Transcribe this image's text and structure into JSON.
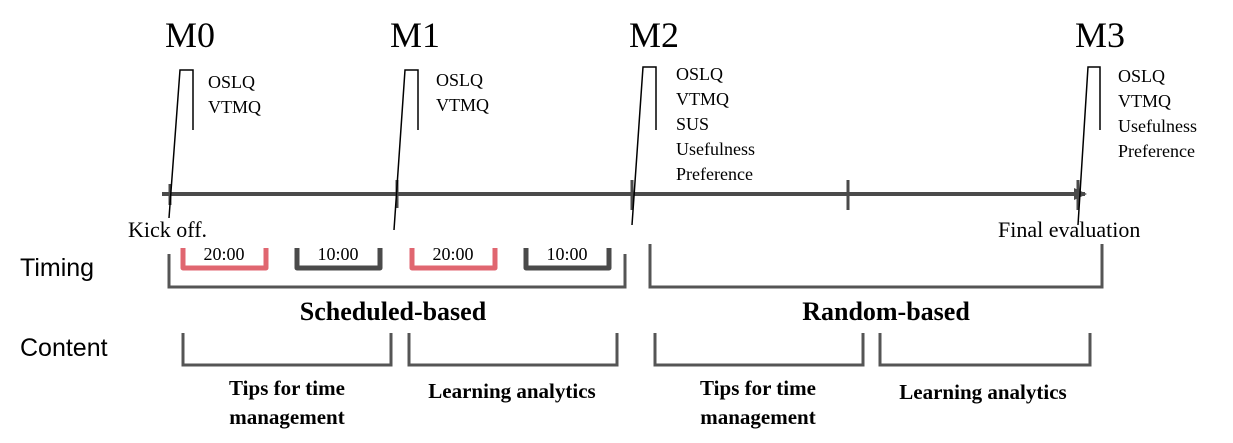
{
  "milestones": [
    {
      "label": "M0",
      "instruments": [
        "OSLQ",
        "VTMQ"
      ]
    },
    {
      "label": "M1",
      "instruments": [
        "OSLQ",
        "VTMQ"
      ]
    },
    {
      "label": "M2",
      "instruments": [
        "OSLQ",
        "VTMQ",
        "SUS",
        "Usefulness",
        "Preference"
      ]
    },
    {
      "label": "M3",
      "instruments": [
        "OSLQ",
        "VTMQ",
        "Usefulness",
        "Preference"
      ]
    }
  ],
  "events": {
    "start": "Kick off.",
    "end": "Final evaluation"
  },
  "rows": {
    "timing": "Timing",
    "content": "Content"
  },
  "timing_slots": [
    {
      "label": "20:00",
      "color": "#e06670"
    },
    {
      "label": "10:00",
      "color": "#4a4a4a"
    },
    {
      "label": "20:00",
      "color": "#e06670"
    },
    {
      "label": "10:00",
      "color": "#4a4a4a"
    }
  ],
  "phases": {
    "scheduled": "Scheduled-based",
    "random": "Random-based"
  },
  "content_blocks": [
    {
      "label": "Tips for time management"
    },
    {
      "label": "Learning analytics"
    },
    {
      "label": "Tips for time management"
    },
    {
      "label": "Learning analytics"
    }
  ],
  "colors": {
    "timeline": "#4a4a4a",
    "bracket": "#555555",
    "highlight": "#e06670"
  }
}
